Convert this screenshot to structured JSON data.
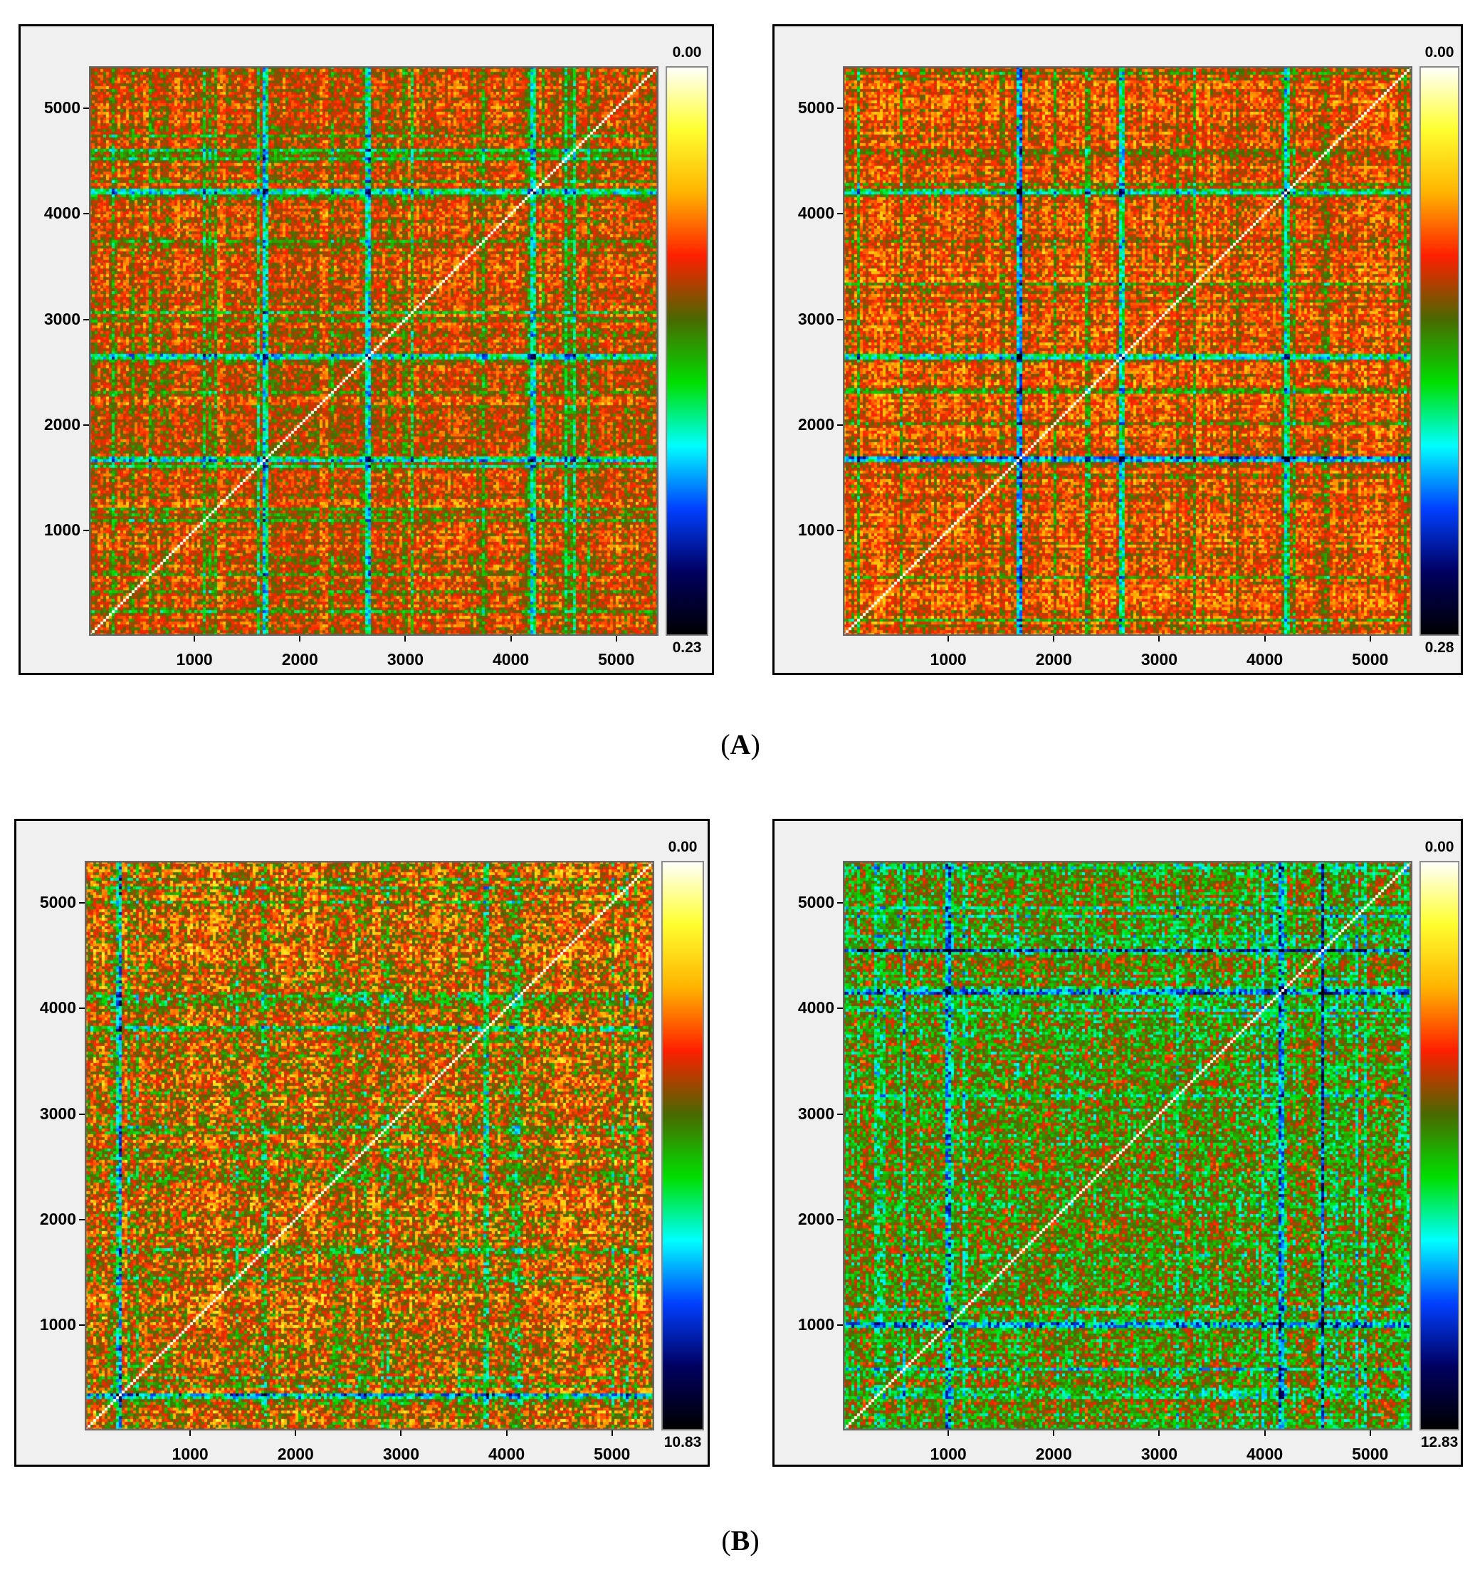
{
  "figure": {
    "captions": [
      {
        "paren_open": "(",
        "letter": "A",
        "paren_close": ")"
      },
      {
        "paren_open": "(",
        "letter": "B",
        "paren_close": ")"
      }
    ]
  },
  "chart_data": [
    {
      "type": "heatmap",
      "group": "A",
      "position": "left",
      "x_ticks": [
        "1000",
        "2000",
        "3000",
        "4000",
        "5000"
      ],
      "y_ticks": [
        "1000",
        "2000",
        "3000",
        "4000",
        "5000"
      ],
      "xlim": [
        0,
        5400
      ],
      "ylim": [
        0,
        5400
      ],
      "colorbar": {
        "top_label": "0.00",
        "bottom_label": "0.23",
        "range": [
          0.0,
          0.23
        ]
      },
      "colormap": [
        "#ffffff",
        "#ffff30",
        "#ffb400",
        "#ff2000",
        "#4a6a00",
        "#00e000",
        "#00ffff",
        "#0040ff",
        "#000060",
        "#000000"
      ],
      "band_positions": [
        1660,
        2640,
        4200,
        4580
      ],
      "stripe_positions": [
        1680,
        2650,
        4220
      ],
      "base_level": 0.35,
      "noise": 0.2
    },
    {
      "type": "heatmap",
      "group": "A",
      "position": "right",
      "x_ticks": [
        "1000",
        "2000",
        "3000",
        "4000",
        "5000"
      ],
      "y_ticks": [
        "1000",
        "2000",
        "3000",
        "4000",
        "5000"
      ],
      "xlim": [
        0,
        5400
      ],
      "ylim": [
        0,
        5400
      ],
      "colorbar": {
        "top_label": "0.00",
        "bottom_label": "0.28",
        "range": [
          0.0,
          0.28
        ]
      },
      "colormap": [
        "#ffffff",
        "#ffff30",
        "#ffb400",
        "#ff2000",
        "#4a6a00",
        "#00e000",
        "#00ffff",
        "#0040ff",
        "#000060",
        "#000000"
      ],
      "band_positions": [
        1660,
        2640,
        4200,
        4580
      ],
      "stripe_positions": [
        1680,
        2650,
        4220
      ],
      "base_level": 0.33,
      "noise": 0.2
    },
    {
      "type": "heatmap",
      "group": "B",
      "position": "left",
      "x_ticks": [
        "1000",
        "2000",
        "3000",
        "4000",
        "5000"
      ],
      "y_ticks": [
        "1000",
        "2000",
        "3000",
        "4000",
        "5000"
      ],
      "xlim": [
        0,
        5400
      ],
      "ylim": [
        0,
        5400
      ],
      "colorbar": {
        "top_label": "0.00",
        "bottom_label": "10.83",
        "range": [
          0.0,
          10.83
        ]
      },
      "colormap": [
        "#ffffff",
        "#ffff30",
        "#ffb400",
        "#ff2000",
        "#4a6a00",
        "#00e000",
        "#00ffff",
        "#0040ff",
        "#000060",
        "#000000"
      ],
      "band_positions": [
        300,
        1700,
        2400,
        4100
      ],
      "stripe_positions": [
        330,
        3800
      ],
      "base_level": 0.34,
      "noise": 0.3
    },
    {
      "type": "heatmap",
      "group": "B",
      "position": "right",
      "x_ticks": [
        "1000",
        "2000",
        "3000",
        "4000",
        "5000"
      ],
      "y_ticks": [
        "1000",
        "2000",
        "3000",
        "4000",
        "5000"
      ],
      "xlim": [
        0,
        5400
      ],
      "ylim": [
        0,
        5400
      ],
      "colorbar": {
        "top_label": "0.00",
        "bottom_label": "12.83",
        "range": [
          0.0,
          12.83
        ]
      },
      "colormap": [
        "#ffffff",
        "#ffff30",
        "#ffb400",
        "#ff2000",
        "#4a6a00",
        "#00e000",
        "#00ffff",
        "#0040ff",
        "#000060",
        "#000000"
      ],
      "band_positions": [
        350,
        1000,
        4150,
        4550
      ],
      "stripe_positions": [
        1000,
        4150,
        4550
      ],
      "base_level": 0.46,
      "noise": 0.28
    }
  ]
}
